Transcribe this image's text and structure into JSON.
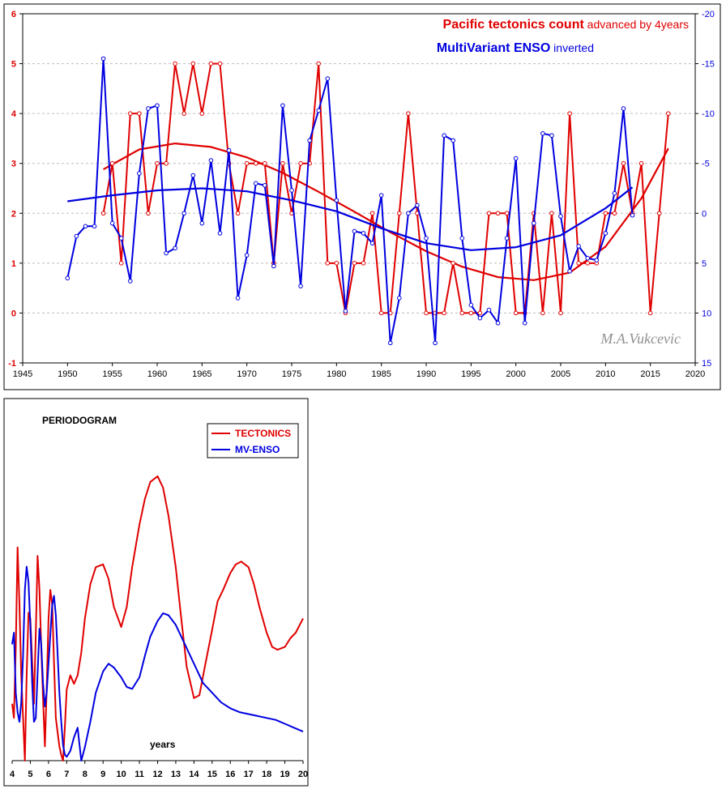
{
  "chart_data": [
    {
      "type": "line",
      "title_part1": "Pacific tectonics count",
      "title_part2": " advanced by 4years",
      "subtitle_part1": "MultiVariant ENSO",
      "subtitle_part2": " inverted",
      "watermark": "M.A.Vukcevic",
      "colors": {
        "tectonics": "#e00000",
        "enso": "#0000e0"
      },
      "xlim": [
        1945,
        2020
      ],
      "xticks": [
        1945,
        1950,
        1955,
        1960,
        1965,
        1970,
        1975,
        1980,
        1985,
        1990,
        1995,
        2000,
        2005,
        2010,
        2015,
        2020
      ],
      "ylim_left": [
        -1,
        6
      ],
      "yticks_left": [
        -1,
        0,
        1,
        2,
        3,
        4,
        5,
        6
      ],
      "ylim_right": [
        15,
        -20
      ],
      "yticks_right": [
        15,
        10,
        5,
        0,
        -5,
        -10,
        -15,
        -20
      ],
      "right_axis_inverted": true,
      "grid": "horizontal dashed",
      "series": [
        {
          "name": "Pacific tectonics count",
          "axis": "left",
          "x": [
            1954,
            1955,
            1956,
            1957,
            1958,
            1959,
            1960,
            1961,
            1962,
            1963,
            1964,
            1965,
            1966,
            1967,
            1968,
            1969,
            1970,
            1971,
            1972,
            1973,
            1974,
            1975,
            1976,
            1977,
            1978,
            1979,
            1980,
            1981,
            1982,
            1983,
            1984,
            1985,
            1986,
            1987,
            1988,
            1989,
            1990,
            1991,
            1992,
            1993,
            1994,
            1995,
            1996,
            1997,
            1998,
            1999,
            2000,
            2001,
            2002,
            2003,
            2004,
            2005,
            2006,
            2007,
            2008,
            2009,
            2010,
            2011,
            2012,
            2013,
            2014,
            2015,
            2016,
            2017
          ],
          "values": [
            2,
            3,
            1,
            4,
            4,
            2,
            3,
            3,
            5,
            4,
            5,
            4,
            5,
            5,
            3,
            2,
            3,
            3,
            3,
            1,
            3,
            2,
            3,
            3,
            5,
            1,
            1,
            0,
            1,
            1,
            2,
            0,
            0,
            2,
            4,
            2,
            0,
            0,
            0,
            1,
            0,
            0,
            0,
            2,
            2,
            2,
            0,
            0,
            2,
            0,
            2,
            0,
            4,
            1,
            1,
            1,
            2,
            2,
            3,
            2,
            3,
            0,
            2,
            4
          ],
          "trend_x": [
            1954,
            1958,
            1962,
            1966,
            1970,
            1974,
            1978,
            1982,
            1986,
            1990,
            1994,
            1998,
            2002,
            2006,
            2010,
            2014,
            2017
          ],
          "trend": [
            2.88,
            3.28,
            3.4,
            3.33,
            3.12,
            2.81,
            2.43,
            2.03,
            1.62,
            1.24,
            0.93,
            0.72,
            0.66,
            0.81,
            1.33,
            2.3,
            3.3
          ]
        },
        {
          "name": "MultiVariant ENSO",
          "axis": "right",
          "x": [
            1950,
            1951,
            1952,
            1953,
            1954,
            1955,
            1956,
            1957,
            1958,
            1959,
            1960,
            1961,
            1962,
            1963,
            1964,
            1965,
            1966,
            1967,
            1968,
            1969,
            1970,
            1971,
            1972,
            1973,
            1974,
            1975,
            1976,
            1977,
            1978,
            1979,
            1980,
            1981,
            1982,
            1983,
            1984,
            1985,
            1986,
            1987,
            1988,
            1989,
            1990,
            1991,
            1992,
            1993,
            1994,
            1995,
            1996,
            1997,
            1998,
            1999,
            2000,
            2001,
            2002,
            2003,
            2004,
            2005,
            2006,
            2007,
            2008,
            2009,
            2010,
            2011,
            2012,
            2013
          ],
          "values": [
            6.5,
            2.3,
            1.3,
            1.3,
            -15.5,
            1,
            2.5,
            6.8,
            -4,
            -10.5,
            -10.8,
            4,
            3.5,
            0,
            -3.8,
            1,
            -5.3,
            2,
            -6.3,
            8.5,
            4.2,
            -3,
            -2.8,
            5.3,
            -10.8,
            -2.3,
            7.3,
            -7.3,
            -10.3,
            -13.5,
            -1.3,
            9.8,
            1.8,
            2,
            3,
            -1.8,
            13,
            8.5,
            0,
            -0.8,
            2.5,
            13,
            -7.8,
            -7.3,
            2.5,
            9.2,
            10.5,
            9.7,
            11,
            2.5,
            -5.5,
            11,
            1,
            -8,
            -7.8,
            0.3,
            5.8,
            3.3,
            4.5,
            4.7,
            2,
            -2,
            -10.5,
            0.2
          ],
          "trend_x": [
            1950,
            1955,
            1960,
            1965,
            1970,
            1975,
            1980,
            1985,
            1990,
            1995,
            2000,
            2005,
            2010,
            2013
          ],
          "trend": [
            -1.2,
            -1.8,
            -2.3,
            -2.5,
            -2.2,
            -1.3,
            -0.2,
            1.5,
            3,
            3.7,
            3.4,
            2.2,
            -0.5,
            -2.6
          ]
        }
      ]
    },
    {
      "type": "line",
      "title": "PERIODOGRAM",
      "xlabel": "years",
      "xlim": [
        4,
        20
      ],
      "xticks": [
        4,
        5,
        6,
        7,
        8,
        9,
        10,
        11,
        12,
        13,
        14,
        15,
        16,
        17,
        18,
        19,
        20
      ],
      "ylim": [
        0,
        1
      ],
      "legend": "top-right",
      "series": [
        {
          "name": "TECTONICS",
          "color": "#e00000",
          "x": [
            4,
            4.1,
            4.2,
            4.3,
            4.4,
            4.5,
            4.6,
            4.7,
            4.8,
            4.9,
            5,
            5.1,
            5.2,
            5.3,
            5.4,
            5.5,
            5.6,
            5.7,
            5.8,
            5.9,
            6,
            6.1,
            6.2,
            6.3,
            6.4,
            6.5,
            6.6,
            6.7,
            6.8,
            6.9,
            7,
            7.2,
            7.4,
            7.6,
            7.8,
            8,
            8.3,
            8.6,
            9,
            9.3,
            9.6,
            10,
            10.3,
            10.6,
            11,
            11.3,
            11.6,
            12,
            12.3,
            12.6,
            13,
            13.3,
            13.6,
            14,
            14.3,
            14.6,
            15,
            15.3,
            15.6,
            16,
            16.3,
            16.6,
            17,
            17.3,
            17.6,
            18,
            18.3,
            18.6,
            19,
            19.3,
            19.6,
            20
          ],
          "values": [
            0.2,
            0.15,
            0.4,
            0.75,
            0.55,
            0.3,
            0.15,
            0.0,
            0.3,
            0.52,
            0.5,
            0.35,
            0.2,
            0.45,
            0.72,
            0.6,
            0.4,
            0.22,
            0.05,
            0.25,
            0.5,
            0.6,
            0.55,
            0.35,
            0.15,
            0.1,
            0.05,
            0.02,
            0.0,
            0.12,
            0.25,
            0.3,
            0.27,
            0.3,
            0.38,
            0.5,
            0.62,
            0.68,
            0.69,
            0.64,
            0.54,
            0.47,
            0.54,
            0.68,
            0.83,
            0.92,
            0.98,
            1.0,
            0.96,
            0.86,
            0.68,
            0.5,
            0.33,
            0.22,
            0.23,
            0.33,
            0.46,
            0.56,
            0.6,
            0.66,
            0.69,
            0.7,
            0.68,
            0.62,
            0.54,
            0.45,
            0.4,
            0.39,
            0.4,
            0.43,
            0.45,
            0.5
          ],
          "scale": 0.88
        },
        {
          "name": "MV-ENSO",
          "color": "#0000e0",
          "x": [
            4,
            4.1,
            4.2,
            4.3,
            4.4,
            4.5,
            4.6,
            4.7,
            4.8,
            4.9,
            5,
            5.1,
            5.2,
            5.3,
            5.4,
            5.5,
            5.6,
            5.7,
            5.8,
            5.9,
            6,
            6.1,
            6.2,
            6.3,
            6.4,
            6.5,
            6.6,
            6.7,
            6.8,
            6.9,
            7,
            7.2,
            7.4,
            7.6,
            7.8,
            8,
            8.3,
            8.6,
            9,
            9.3,
            9.6,
            10,
            10.3,
            10.6,
            11,
            11.3,
            11.6,
            12,
            12.3,
            12.6,
            13,
            13.5,
            14,
            14.5,
            15,
            15.5,
            16,
            16.5,
            17,
            17.5,
            18,
            18.5,
            19,
            19.5,
            20
          ],
          "values": [
            0.6,
            0.66,
            0.35,
            0.25,
            0.2,
            0.3,
            0.55,
            0.88,
            1.0,
            0.92,
            0.7,
            0.4,
            0.2,
            0.22,
            0.45,
            0.68,
            0.6,
            0.4,
            0.28,
            0.35,
            0.5,
            0.65,
            0.8,
            0.85,
            0.75,
            0.55,
            0.35,
            0.2,
            0.08,
            0.03,
            0.02,
            0.05,
            0.12,
            0.17,
            0.0,
            0.07,
            0.2,
            0.35,
            0.46,
            0.5,
            0.48,
            0.43,
            0.38,
            0.37,
            0.43,
            0.54,
            0.64,
            0.72,
            0.76,
            0.75,
            0.7,
            0.6,
            0.5,
            0.4,
            0.35,
            0.3,
            0.27,
            0.25,
            0.24,
            0.23,
            0.22,
            0.21,
            0.19,
            0.17,
            0.15
          ],
          "scale": 0.6
        }
      ]
    }
  ]
}
